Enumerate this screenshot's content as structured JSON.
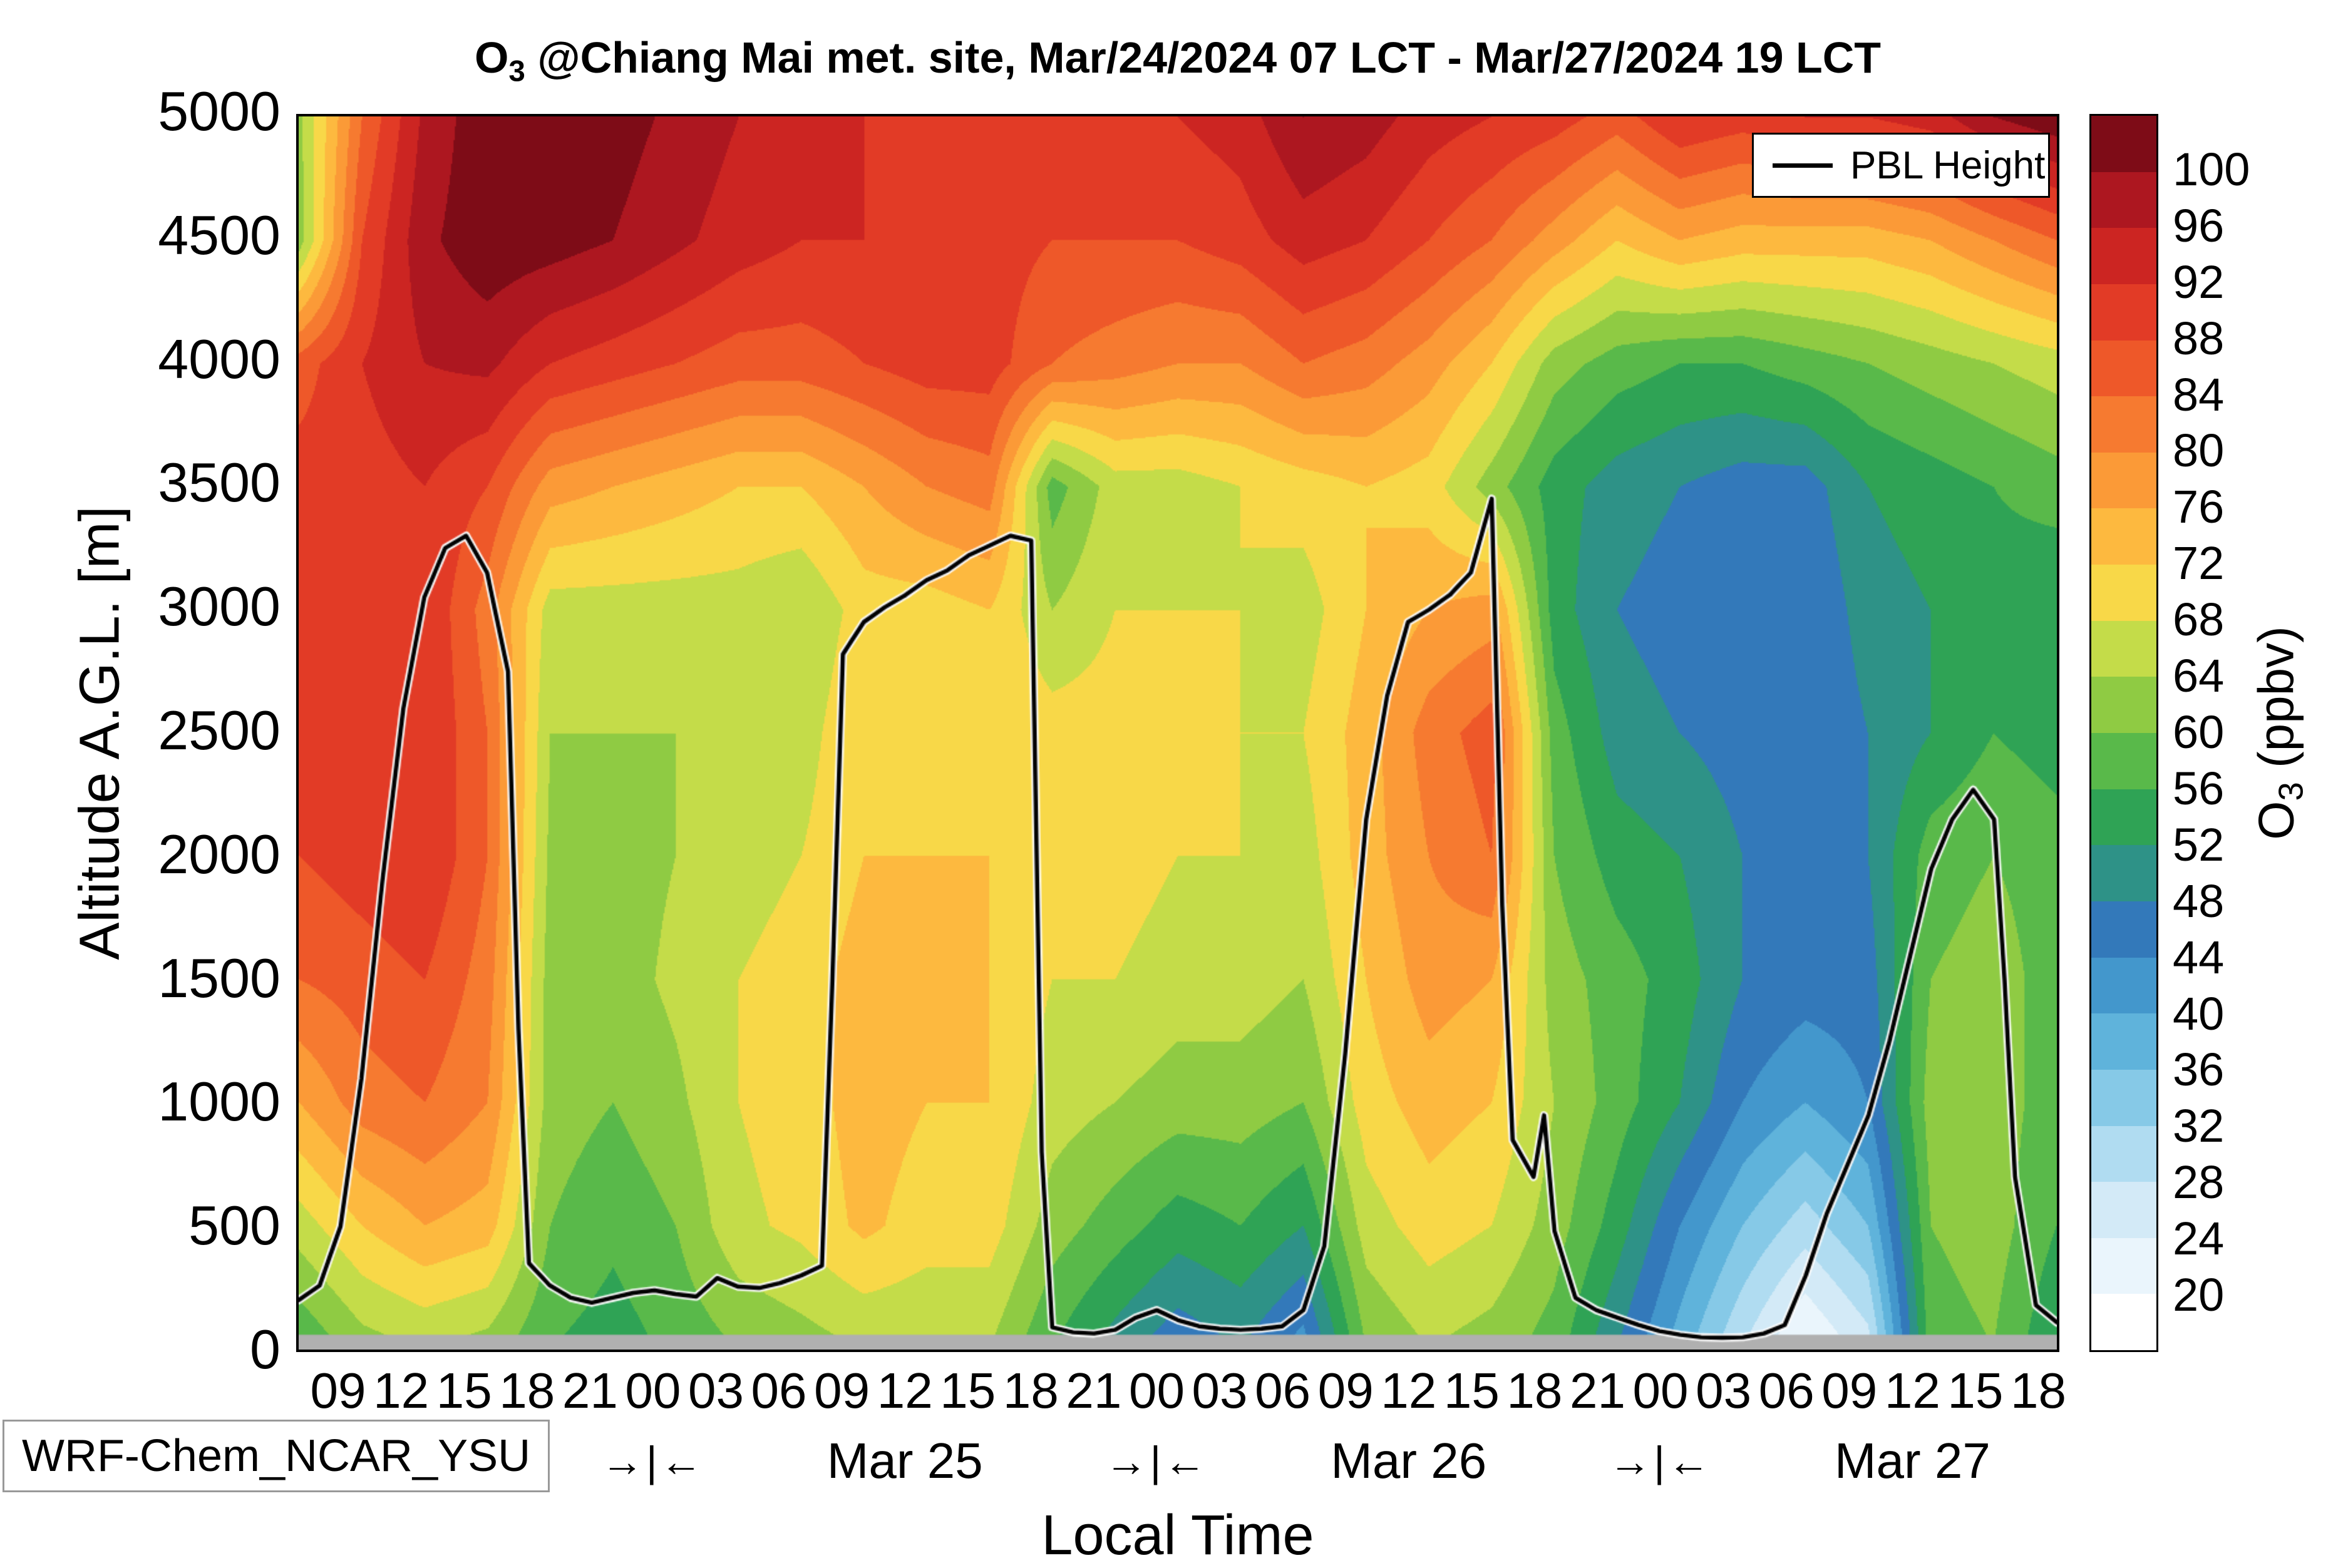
{
  "title": {
    "prefix": "O",
    "subscript": "3",
    "rest": " @Chiang Mai met. site, Mar/24/2024 07 LCT - Mar/27/2024 19 LCT"
  },
  "axes": {
    "ylabel": "Altitude A.G.L. [m]",
    "xlabel": "Local Time",
    "yticks": [
      0,
      500,
      1000,
      1500,
      2000,
      2500,
      3000,
      3500,
      4000,
      4500,
      5000
    ],
    "xticks": [
      {
        "t": 9,
        "label": "09"
      },
      {
        "t": 12,
        "label": "12"
      },
      {
        "t": 15,
        "label": "15"
      },
      {
        "t": 18,
        "label": "18"
      },
      {
        "t": 21,
        "label": "21"
      },
      {
        "t": 24,
        "label": "00"
      },
      {
        "t": 27,
        "label": "03"
      },
      {
        "t": 30,
        "label": "06"
      },
      {
        "t": 33,
        "label": "09"
      },
      {
        "t": 36,
        "label": "12"
      },
      {
        "t": 39,
        "label": "15"
      },
      {
        "t": 42,
        "label": "18"
      },
      {
        "t": 45,
        "label": "21"
      },
      {
        "t": 48,
        "label": "00"
      },
      {
        "t": 51,
        "label": "03"
      },
      {
        "t": 54,
        "label": "06"
      },
      {
        "t": 57,
        "label": "09"
      },
      {
        "t": 60,
        "label": "12"
      },
      {
        "t": 63,
        "label": "15"
      },
      {
        "t": 66,
        "label": "18"
      },
      {
        "t": 69,
        "label": "21"
      },
      {
        "t": 72,
        "label": "00"
      },
      {
        "t": 75,
        "label": "03"
      },
      {
        "t": 78,
        "label": "06"
      },
      {
        "t": 81,
        "label": "09"
      },
      {
        "t": 84,
        "label": "12"
      },
      {
        "t": 87,
        "label": "15"
      },
      {
        "t": 90,
        "label": "18"
      }
    ],
    "day_dividers": [
      {
        "t": 24,
        "label": "→|←"
      },
      {
        "t": 48,
        "label": "→|←"
      },
      {
        "t": 72,
        "label": "→|←"
      }
    ],
    "day_labels": [
      {
        "t": 36,
        "label": "Mar 25"
      },
      {
        "t": 60,
        "label": "Mar 26"
      },
      {
        "t": 84,
        "label": "Mar 27"
      }
    ]
  },
  "legend": {
    "label": "PBL Height",
    "line_color": "#000000"
  },
  "model_label": "WRF-Chem_NCAR_YSU",
  "colorbar": {
    "label_prefix": "O",
    "label_subscript": "3",
    "label_rest": " (ppbv)",
    "ticks_low_to_high": [
      20,
      24,
      28,
      32,
      36,
      40,
      44,
      48,
      52,
      56,
      60,
      64,
      68,
      72,
      76,
      80,
      84,
      88,
      92,
      96,
      100
    ],
    "colors_low_to_high": [
      "#ffffff",
      "#eaf5fc",
      "#d3eaf7",
      "#b0dcf1",
      "#86c9e7",
      "#5fb3db",
      "#4397cc",
      "#3379ba",
      "#2e9287",
      "#2fa355",
      "#59b94a",
      "#8fcb43",
      "#c4dc49",
      "#f8d848",
      "#fdb93f",
      "#fb9a37",
      "#f67a30",
      "#ee5829",
      "#e23b26",
      "#cc2522",
      "#ad1720",
      "#7e0c17"
    ]
  },
  "chart_data": {
    "type": "heatmap",
    "title": "O3 @Chiang Mai met. site, Mar/24/2024 07 LCT - Mar/27/2024 19 LCT",
    "xlabel": "Local Time",
    "ylabel": "Altitude A.G.L. [m]",
    "value_label": "O3 (ppbv)",
    "t_range": [
      7,
      91
    ],
    "t_note": "hours since Mar/24/2024 00 LCT; axis spans Mar/24 07 LCT to Mar/27 19 LCT",
    "x_hours": [
      7,
      10,
      13,
      16,
      19,
      22,
      25,
      28,
      31,
      34,
      37,
      40,
      43,
      46,
      49,
      52,
      55,
      58,
      61,
      64,
      67,
      70,
      73,
      76,
      79,
      82,
      85,
      88,
      91
    ],
    "altitudes_m": [
      0,
      500,
      1000,
      1500,
      2000,
      2500,
      3000,
      3500,
      4000,
      4500,
      5000
    ],
    "bin_width_ppbv": 4,
    "value_range_ppbv": [
      20,
      100
    ],
    "grid_note": "o3_ppbv_columns[i] is the vertical profile (alt 0 to 5000 m) at x_hours[i], estimated from contour fill",
    "o3_ppbv_columns": [
      [
        56,
        66,
        76,
        84,
        88,
        88,
        88,
        90,
        86,
        62,
        63
      ],
      [
        62,
        72,
        82,
        86,
        90,
        90,
        90,
        90,
        92,
        88,
        84
      ],
      [
        64,
        76,
        84,
        88,
        92,
        92,
        92,
        92,
        96,
        99,
        97
      ],
      [
        62,
        74,
        80,
        82,
        84,
        84,
        82,
        88,
        97,
        103,
        103
      ],
      [
        56,
        60,
        62,
        62,
        63,
        64,
        66,
        78,
        92,
        102,
        103
      ],
      [
        54,
        57,
        60,
        62,
        62,
        64,
        66,
        76,
        90,
        100,
        102
      ],
      [
        57,
        60,
        63,
        65,
        64,
        64,
        66,
        74,
        88,
        97,
        99
      ],
      [
        60,
        67,
        68,
        68,
        66,
        64,
        66,
        72,
        86,
        94,
        96
      ],
      [
        62,
        69,
        70,
        70,
        68,
        66,
        64,
        72,
        86,
        92,
        94
      ],
      [
        64,
        73,
        74,
        74,
        72,
        72,
        70,
        76,
        88,
        92,
        92
      ],
      [
        64,
        70,
        72,
        72,
        72,
        70,
        70,
        80,
        90,
        92,
        90
      ],
      [
        64,
        70,
        72,
        72,
        72,
        72,
        72,
        82,
        90,
        90,
        88
      ],
      [
        56,
        62,
        66,
        68,
        70,
        70,
        64,
        58,
        84,
        88,
        88
      ],
      [
        50,
        58,
        64,
        68,
        70,
        70,
        68,
        66,
        82,
        88,
        90
      ],
      [
        45,
        54,
        62,
        66,
        68,
        70,
        68,
        66,
        80,
        88,
        92
      ],
      [
        48,
        56,
        62,
        66,
        68,
        68,
        68,
        68,
        80,
        90,
        94
      ],
      [
        42,
        52,
        60,
        64,
        66,
        68,
        66,
        70,
        84,
        94,
        100
      ],
      [
        60,
        66,
        70,
        72,
        74,
        74,
        72,
        72,
        82,
        92,
        98
      ],
      [
        64,
        70,
        74,
        78,
        80,
        82,
        76,
        70,
        78,
        88,
        94
      ],
      [
        62,
        68,
        72,
        76,
        84,
        86,
        78,
        62,
        72,
        84,
        92
      ],
      [
        58,
        62,
        64,
        62,
        60,
        58,
        54,
        54,
        62,
        78,
        90
      ],
      [
        48,
        54,
        58,
        58,
        54,
        50,
        48,
        50,
        58,
        72,
        86
      ],
      [
        38,
        44,
        52,
        54,
        52,
        48,
        46,
        48,
        56,
        76,
        92
      ],
      [
        28,
        36,
        44,
        48,
        48,
        46,
        44,
        46,
        56,
        74,
        90
      ],
      [
        19,
        30,
        40,
        46,
        46,
        44,
        44,
        46,
        58,
        74,
        92
      ],
      [
        26,
        36,
        44,
        46,
        48,
        48,
        50,
        52,
        60,
        74,
        92
      ],
      [
        58,
        60,
        62,
        60,
        58,
        52,
        52,
        54,
        62,
        76,
        94
      ],
      [
        60,
        62,
        62,
        62,
        60,
        56,
        54,
        56,
        64,
        80,
        100
      ],
      [
        52,
        56,
        58,
        58,
        58,
        54,
        52,
        58,
        66,
        84,
        103
      ]
    ],
    "pbl_height_series_name": "PBL Height",
    "pbl_height_m": [
      [
        7,
        200
      ],
      [
        8,
        260
      ],
      [
        9,
        500
      ],
      [
        10,
        1100
      ],
      [
        11,
        1900
      ],
      [
        12,
        2600
      ],
      [
        13,
        3050
      ],
      [
        14,
        3250
      ],
      [
        15,
        3300
      ],
      [
        16,
        3150
      ],
      [
        17,
        2750
      ],
      [
        17.5,
        1300
      ],
      [
        18,
        350
      ],
      [
        19,
        260
      ],
      [
        20,
        210
      ],
      [
        21,
        190
      ],
      [
        22,
        210
      ],
      [
        23,
        230
      ],
      [
        24,
        240
      ],
      [
        25,
        225
      ],
      [
        26,
        215
      ],
      [
        27,
        290
      ],
      [
        28,
        255
      ],
      [
        29,
        250
      ],
      [
        30,
        270
      ],
      [
        31,
        300
      ],
      [
        32,
        340
      ],
      [
        32.5,
        1500
      ],
      [
        33,
        2820
      ],
      [
        34,
        2950
      ],
      [
        35,
        3010
      ],
      [
        36,
        3060
      ],
      [
        37,
        3120
      ],
      [
        38,
        3160
      ],
      [
        39,
        3220
      ],
      [
        40,
        3260
      ],
      [
        41,
        3300
      ],
      [
        42,
        3280
      ],
      [
        42.5,
        800
      ],
      [
        43,
        90
      ],
      [
        44,
        70
      ],
      [
        45,
        65
      ],
      [
        46,
        80
      ],
      [
        47,
        130
      ],
      [
        48,
        160
      ],
      [
        49,
        120
      ],
      [
        50,
        95
      ],
      [
        51,
        85
      ],
      [
        52,
        80
      ],
      [
        53,
        85
      ],
      [
        54,
        95
      ],
      [
        55,
        160
      ],
      [
        56,
        420
      ],
      [
        57,
        1200
      ],
      [
        58,
        2150
      ],
      [
        59,
        2650
      ],
      [
        60,
        2950
      ],
      [
        61,
        3000
      ],
      [
        62,
        3060
      ],
      [
        63,
        3150
      ],
      [
        64,
        3450
      ],
      [
        64.5,
        1800
      ],
      [
        65,
        850
      ],
      [
        66,
        700
      ],
      [
        66.5,
        950
      ],
      [
        67,
        480
      ],
      [
        68,
        210
      ],
      [
        69,
        160
      ],
      [
        70,
        130
      ],
      [
        71,
        100
      ],
      [
        72,
        75
      ],
      [
        73,
        60
      ],
      [
        74,
        50
      ],
      [
        75,
        48
      ],
      [
        76,
        50
      ],
      [
        77,
        65
      ],
      [
        78,
        100
      ],
      [
        79,
        300
      ],
      [
        80,
        550
      ],
      [
        81,
        750
      ],
      [
        82,
        950
      ],
      [
        83,
        1250
      ],
      [
        84,
        1600
      ],
      [
        85,
        1950
      ],
      [
        86,
        2150
      ],
      [
        87,
        2270
      ],
      [
        88,
        2150
      ],
      [
        88.5,
        1500
      ],
      [
        89,
        700
      ],
      [
        90,
        180
      ],
      [
        91,
        110
      ]
    ],
    "ground_strip_m": 60,
    "ground_strip_color": "#b0b0b0"
  }
}
